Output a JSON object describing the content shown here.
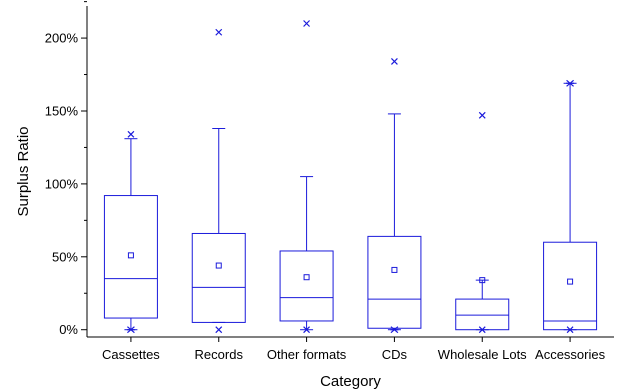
{
  "chart_data": {
    "type": "box",
    "xlabel": "Category",
    "ylabel": "Surplus Ratio",
    "y_unit": "%",
    "ylim": [
      -5,
      222
    ],
    "y_ticks": [
      0,
      50,
      100,
      150,
      200
    ],
    "y_tick_labels": [
      "0%",
      "50%",
      "100%",
      "150%",
      "200%"
    ],
    "categories": [
      "Cassettes",
      "Records",
      "Other formats",
      "CDs",
      "Wholesale Lots",
      "Accessories"
    ],
    "boxes": [
      {
        "category": "Cassettes",
        "min": 0,
        "q1": 8,
        "median": 35,
        "q3": 92,
        "max": 131,
        "mean": 51,
        "outliers_high": [
          134
        ],
        "outliers_low": [
          0,
          0
        ]
      },
      {
        "category": "Records",
        "min": 5,
        "q1": 5,
        "median": 29,
        "q3": 66,
        "max": 138,
        "mean": 44,
        "outliers_high": [
          204
        ],
        "outliers_low": [
          0
        ]
      },
      {
        "category": "Other formats",
        "min": 0,
        "q1": 6,
        "median": 22,
        "q3": 54,
        "max": 105,
        "mean": 36,
        "outliers_high": [
          210
        ],
        "outliers_low": [
          0
        ]
      },
      {
        "category": "CDs",
        "min": 0,
        "q1": 1,
        "median": 21,
        "q3": 64,
        "max": 148,
        "mean": 41,
        "outliers_high": [
          184
        ],
        "outliers_low": [
          0,
          0
        ]
      },
      {
        "category": "Wholesale Lots",
        "min": 0,
        "q1": 0,
        "median": 10,
        "q3": 21,
        "max": 34,
        "mean": 34,
        "outliers_high": [
          147
        ],
        "outliers_low": [
          0
        ]
      },
      {
        "category": "Accessories",
        "min": 0,
        "q1": 0,
        "median": 6,
        "q3": 60,
        "max": 169,
        "mean": 33,
        "outliers_high": [
          169,
          169
        ],
        "outliers_low": [
          0
        ]
      }
    ],
    "colors": {
      "series": "#1a1adb",
      "axis": "#000000"
    },
    "grid": false,
    "legend": "none"
  }
}
